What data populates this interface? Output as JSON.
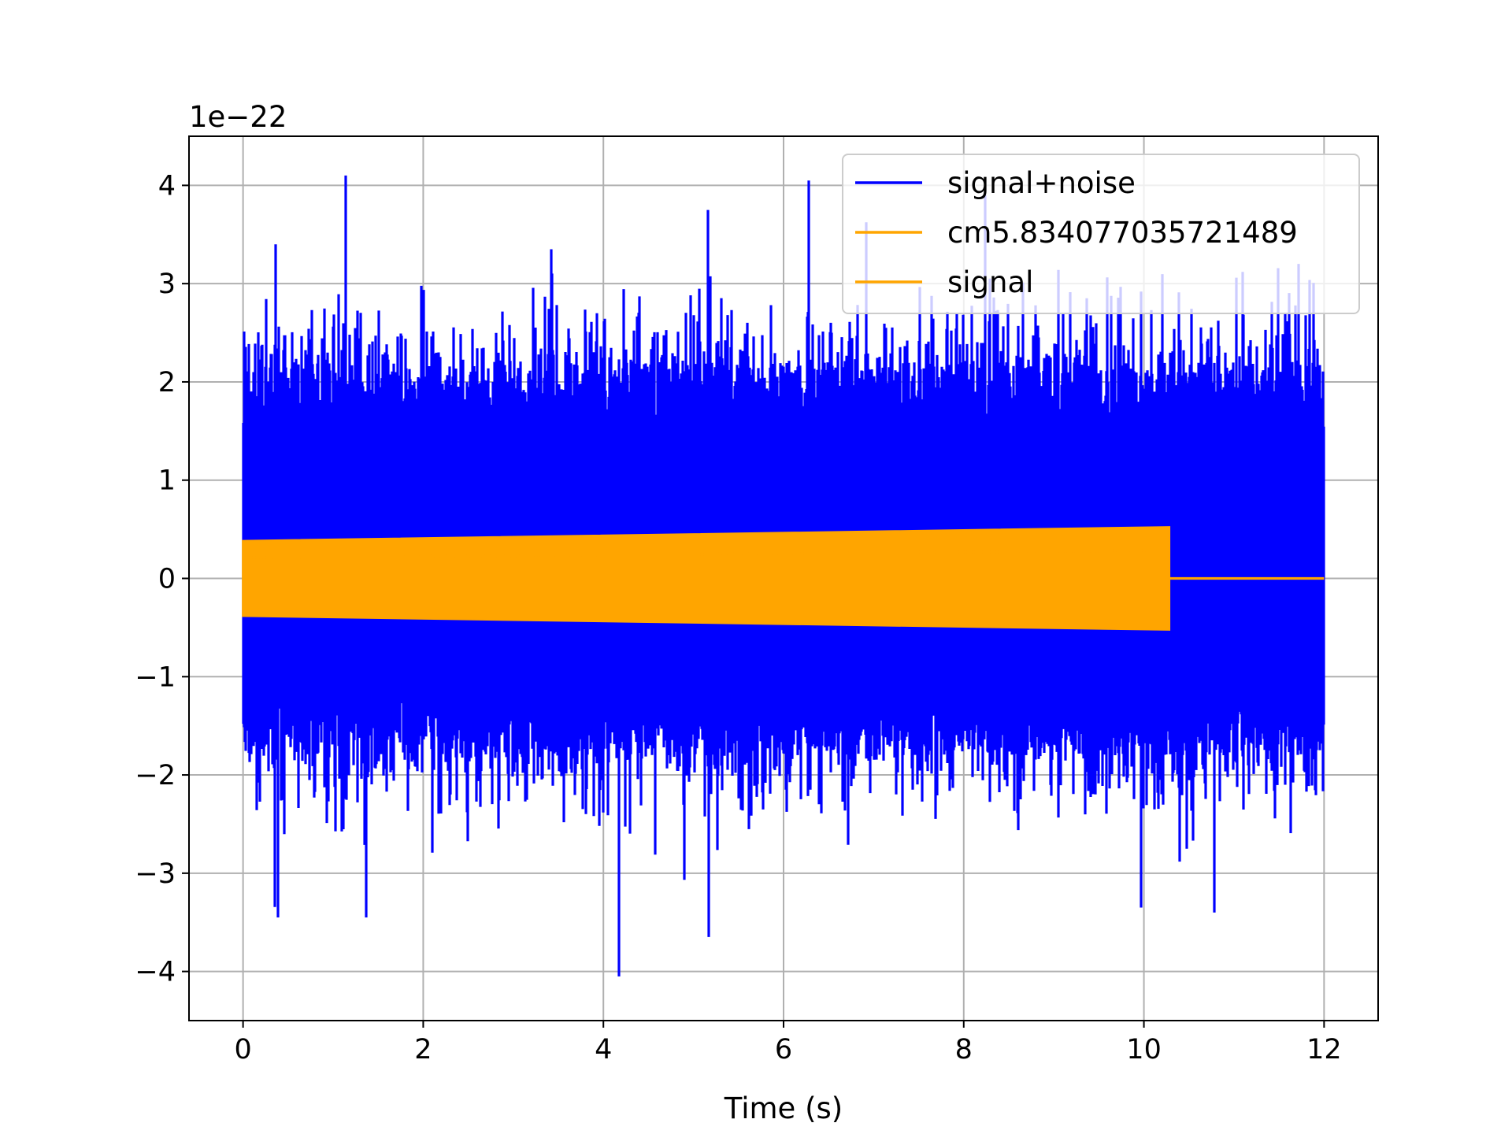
{
  "chart_data": {
    "type": "line",
    "xlabel": "Time (s)",
    "ylabel": "",
    "offset_text": "1e−22",
    "xlim": [
      -0.6,
      12.6
    ],
    "ylim": [
      -4.5,
      4.5
    ],
    "xticks": [
      0,
      2,
      4,
      6,
      8,
      10,
      12
    ],
    "xtick_labels": [
      "0",
      "2",
      "4",
      "6",
      "8",
      "10",
      "12"
    ],
    "yticks": [
      -4,
      -3,
      -2,
      -1,
      0,
      1,
      2,
      3,
      4
    ],
    "ytick_labels": [
      "−4",
      "−3",
      "−2",
      "−1",
      "0",
      "1",
      "2",
      "3",
      "4"
    ],
    "grid": true,
    "legend_position": "top-right",
    "series": [
      {
        "name": "signal+noise",
        "color": "#0000ff",
        "x_range": [
          0,
          12
        ],
        "typical_envelope": [
          -1.8,
          2.2
        ],
        "peaks": [
          {
            "x": 0.36,
            "y": 3.4
          },
          {
            "x": 1.14,
            "y": 4.1
          },
          {
            "x": 3.42,
            "y": 3.35
          },
          {
            "x": 5.16,
            "y": 3.75
          },
          {
            "x": 6.28,
            "y": 4.05
          },
          {
            "x": 8.24,
            "y": 3.9
          },
          {
            "x": 0.39,
            "y": -3.45
          },
          {
            "x": 1.37,
            "y": -3.45
          },
          {
            "x": 4.17,
            "y": -4.05
          },
          {
            "x": 5.17,
            "y": -3.65
          },
          {
            "x": 9.97,
            "y": -3.35
          },
          {
            "x": 10.78,
            "y": -3.4
          }
        ]
      },
      {
        "name": "cm5.834077035721489",
        "color": "#ffa500",
        "x_range": [
          0,
          10.28
        ],
        "amplitude_start": 0.38,
        "amplitude_end": 0.52
      },
      {
        "name": "signal",
        "color": "#ffa500",
        "x_range": [
          0,
          10.28
        ],
        "amplitude_start": 0.38,
        "amplitude_end": 0.52,
        "after_end_value": 0
      }
    ]
  }
}
